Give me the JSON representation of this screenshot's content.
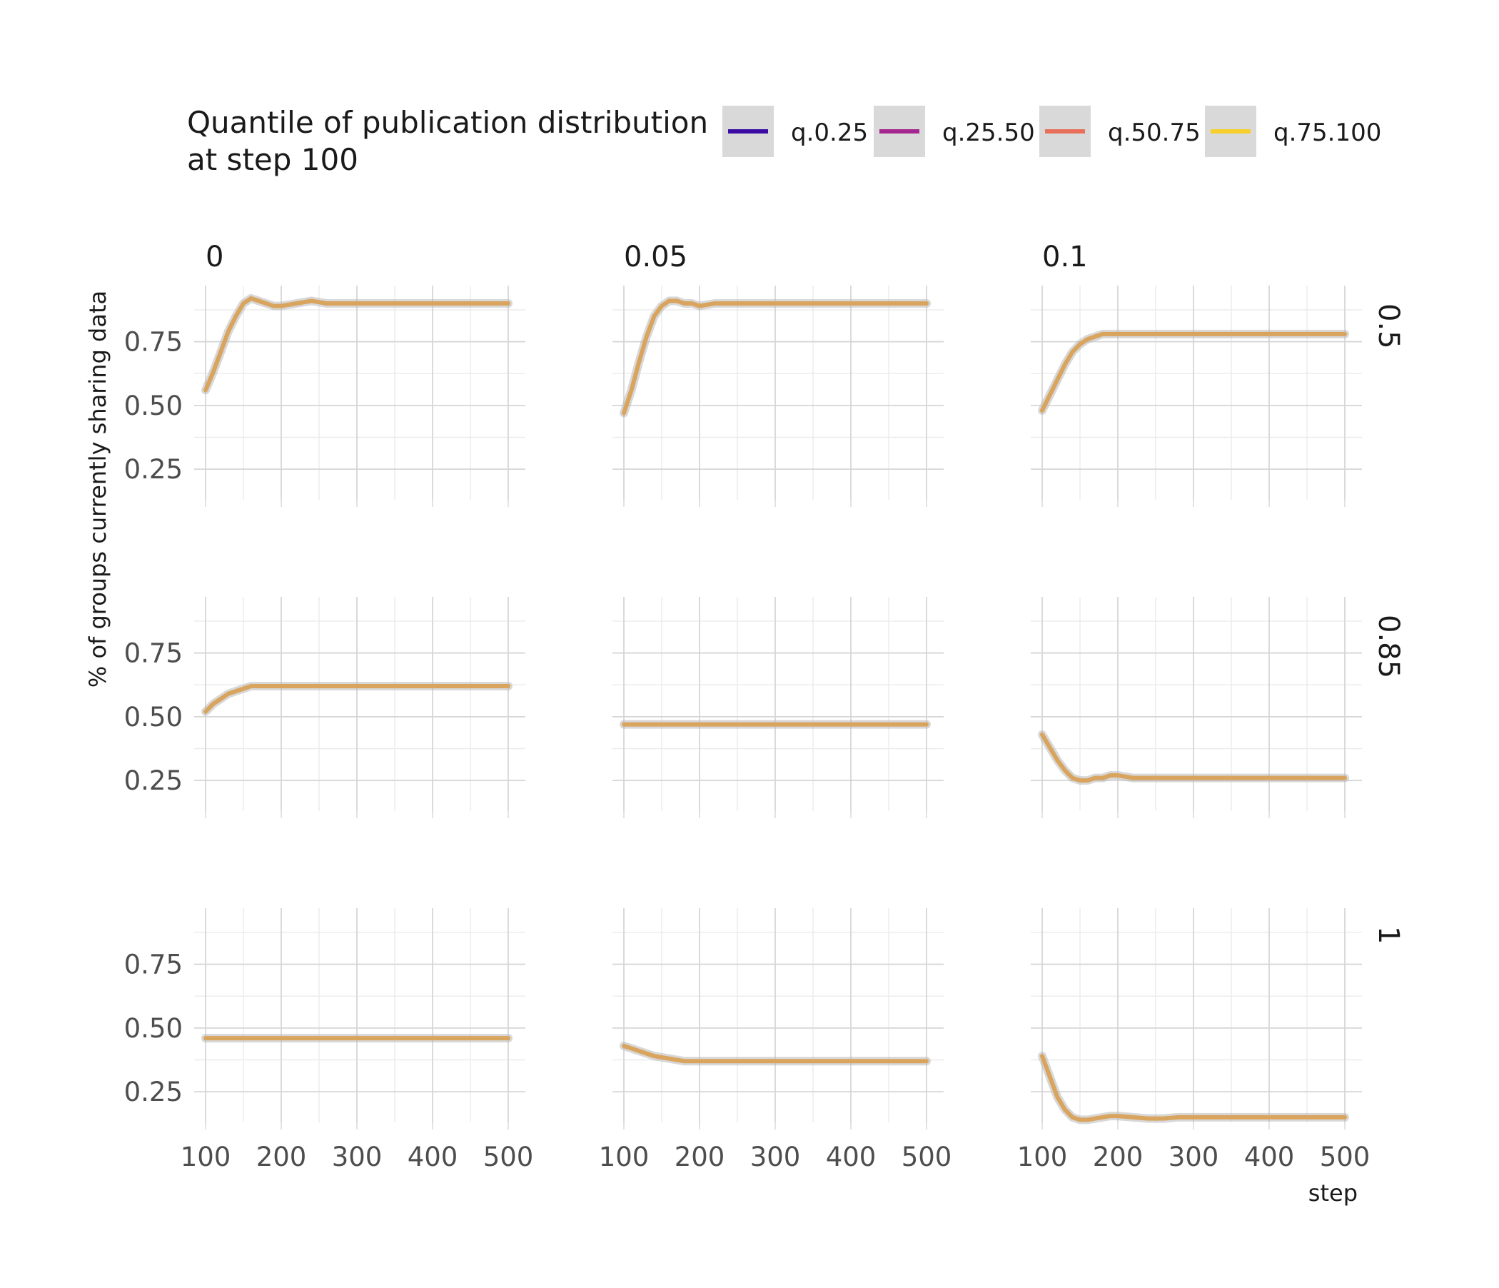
{
  "chart_data": {
    "type": "line",
    "title": "",
    "xlabel": "step",
    "ylabel": "% of groups currently sharing data",
    "xlim": [
      100,
      500
    ],
    "ylim": [
      0.13,
      0.97
    ],
    "x_ticks": [
      100,
      200,
      300,
      400,
      500
    ],
    "y_ticks": [
      0.25,
      0.5,
      0.75
    ],
    "y_tick_labels": [
      "0.25",
      "0.50",
      "0.75"
    ],
    "x_tick_labels": [
      "100",
      "200",
      "300",
      "400",
      "500"
    ],
    "grid": true,
    "legend": {
      "title": "Quantile of publication distribution\n at step 100",
      "placement": "top",
      "entries": [
        {
          "name": "q.0.25",
          "color": "#3a0ca3"
        },
        {
          "name": "q.25.50",
          "color": "#a4268f"
        },
        {
          "name": "q.50.75",
          "color": "#e8705a"
        },
        {
          "name": "q.75.100",
          "color": "#f7cf2a"
        }
      ]
    },
    "line_color": "#d9a45e",
    "band_color": "#b8b8b8",
    "col_facets": [
      "0",
      "0.05",
      "0.1"
    ],
    "row_facets": [
      "0.5",
      "0.85",
      "1"
    ],
    "x": [
      100,
      110,
      120,
      130,
      140,
      150,
      160,
      170,
      180,
      190,
      200,
      220,
      240,
      260,
      280,
      300,
      350,
      400,
      450,
      500
    ],
    "panels": [
      {
        "col": "0",
        "row": "0.5",
        "y": [
          0.56,
          0.63,
          0.71,
          0.79,
          0.85,
          0.9,
          0.92,
          0.91,
          0.9,
          0.89,
          0.89,
          0.9,
          0.91,
          0.9,
          0.9,
          0.9,
          0.9,
          0.9,
          0.9,
          0.9
        ]
      },
      {
        "col": "0.05",
        "row": "0.5",
        "y": [
          0.47,
          0.56,
          0.67,
          0.77,
          0.85,
          0.89,
          0.91,
          0.91,
          0.9,
          0.9,
          0.89,
          0.9,
          0.9,
          0.9,
          0.9,
          0.9,
          0.9,
          0.9,
          0.9,
          0.9
        ]
      },
      {
        "col": "0.1",
        "row": "0.5",
        "y": [
          0.48,
          0.54,
          0.6,
          0.66,
          0.71,
          0.74,
          0.76,
          0.77,
          0.78,
          0.78,
          0.78,
          0.78,
          0.78,
          0.78,
          0.78,
          0.78,
          0.78,
          0.78,
          0.78,
          0.78
        ]
      },
      {
        "col": "0",
        "row": "0.85",
        "y": [
          0.52,
          0.55,
          0.57,
          0.59,
          0.6,
          0.61,
          0.62,
          0.62,
          0.62,
          0.62,
          0.62,
          0.62,
          0.62,
          0.62,
          0.62,
          0.62,
          0.62,
          0.62,
          0.62,
          0.62
        ]
      },
      {
        "col": "0.05",
        "row": "0.85",
        "y": [
          0.47,
          0.47,
          0.47,
          0.47,
          0.47,
          0.47,
          0.47,
          0.47,
          0.47,
          0.47,
          0.47,
          0.47,
          0.47,
          0.47,
          0.47,
          0.47,
          0.47,
          0.47,
          0.47,
          0.47
        ]
      },
      {
        "col": "0.1",
        "row": "0.85",
        "y": [
          0.43,
          0.38,
          0.33,
          0.29,
          0.26,
          0.25,
          0.25,
          0.26,
          0.26,
          0.27,
          0.27,
          0.26,
          0.26,
          0.26,
          0.26,
          0.26,
          0.26,
          0.26,
          0.26,
          0.26
        ]
      },
      {
        "col": "0",
        "row": "1",
        "y": [
          0.46,
          0.46,
          0.46,
          0.46,
          0.46,
          0.46,
          0.46,
          0.46,
          0.46,
          0.46,
          0.46,
          0.46,
          0.46,
          0.46,
          0.46,
          0.46,
          0.46,
          0.46,
          0.46,
          0.46
        ]
      },
      {
        "col": "0.05",
        "row": "1",
        "y": [
          0.43,
          0.42,
          0.41,
          0.4,
          0.39,
          0.385,
          0.38,
          0.375,
          0.37,
          0.37,
          0.37,
          0.37,
          0.37,
          0.37,
          0.37,
          0.37,
          0.37,
          0.37,
          0.37,
          0.37
        ]
      },
      {
        "col": "0.1",
        "row": "1",
        "y": [
          0.39,
          0.31,
          0.23,
          0.18,
          0.15,
          0.14,
          0.14,
          0.145,
          0.15,
          0.155,
          0.155,
          0.15,
          0.145,
          0.145,
          0.15,
          0.15,
          0.15,
          0.15,
          0.15,
          0.15
        ]
      }
    ]
  }
}
